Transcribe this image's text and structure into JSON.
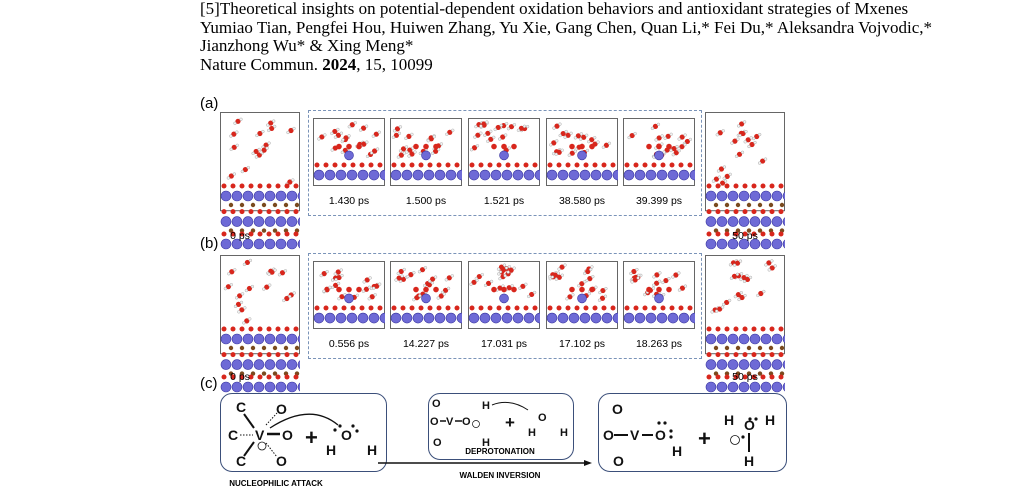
{
  "reference": {
    "line1": "[5]Theoretical insights on potential-dependent oxidation behaviors and antioxidant strategies of Mxenes",
    "line2": "Yumiao Tian, Pengfei Hou, Huiwen Zhang, Yu Xie, Gang Chen, Quan Li,* Fei Du,* Aleksandra Vojvodic,*",
    "line3": "Jianzhong Wu* & Xing Meng*",
    "journal": "Nature Commun. ",
    "year": "2024",
    "rest": ", 15, 10099"
  },
  "panel_a": {
    "label": "(a)",
    "start": "0 ps",
    "end": "50 ps",
    "times": [
      "1.430 ps",
      "1.500 ps",
      "1.521 ps",
      "38.580 ps",
      "39.399 ps"
    ]
  },
  "panel_b": {
    "label": "(b)",
    "start": "0 ps",
    "end": "50 ps",
    "times": [
      "0.556 ps",
      "14.227 ps",
      "17.031 ps",
      "17.102 ps",
      "18.263 ps"
    ]
  },
  "panel_c": {
    "label": "(c)",
    "nucleophilic": "NUCLEOPHILIC ATTACK",
    "deprotonation": "DEPROTONATION",
    "walden": "WALDEN INVERSION"
  },
  "colors": {
    "vanadium": "#6e6ad6",
    "oxygen": "#d8261c",
    "carbon": "#7a4a1e",
    "box": "#3b4f7a"
  }
}
